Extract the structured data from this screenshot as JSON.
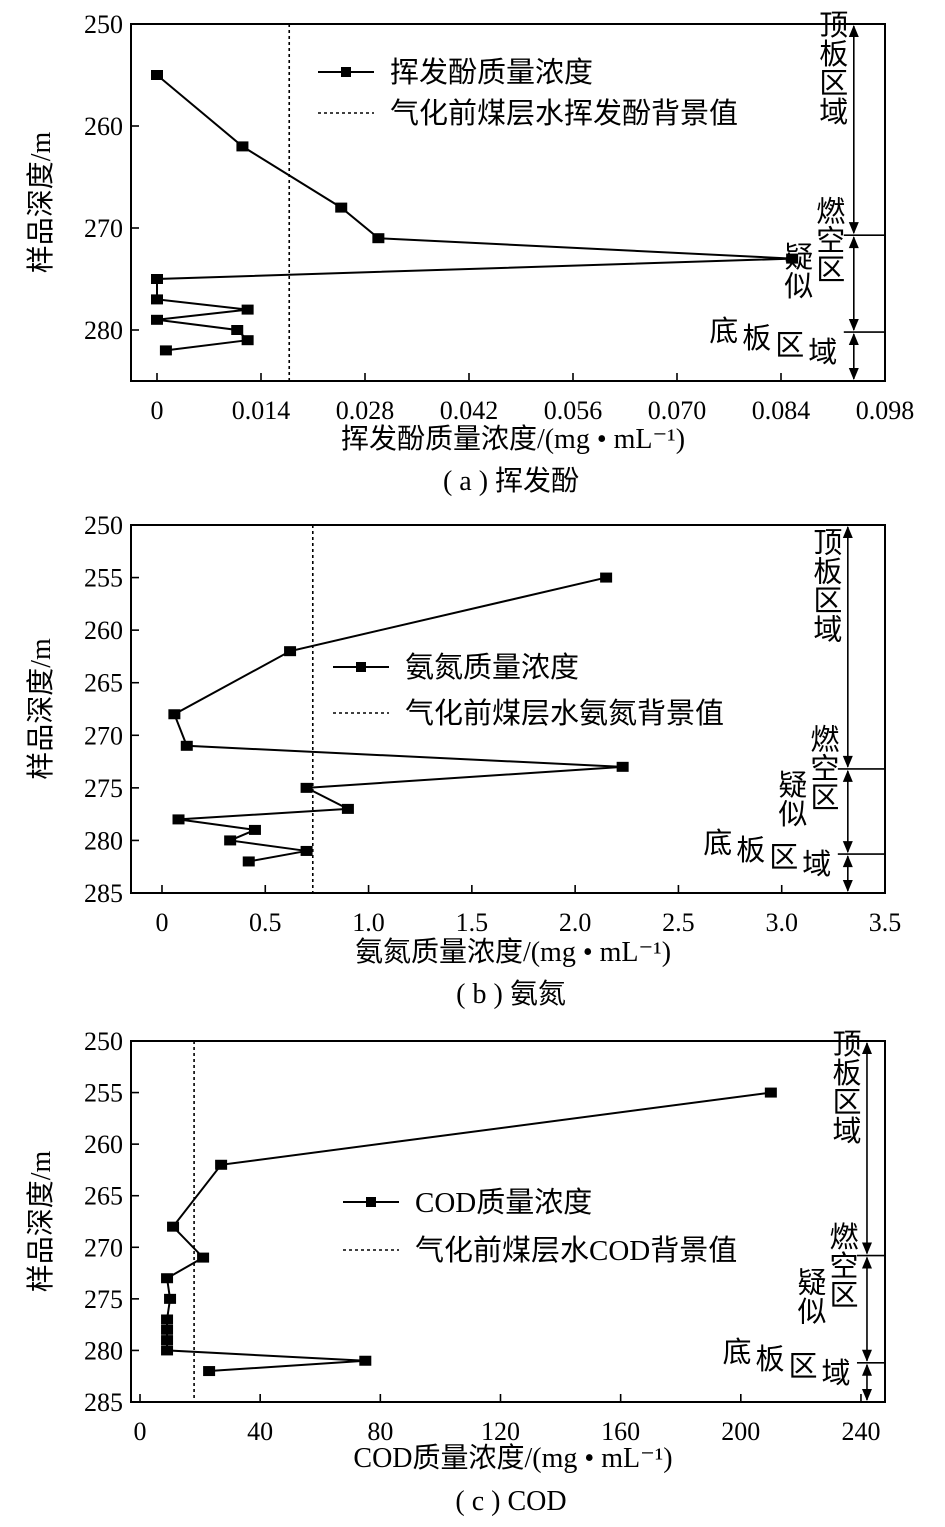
{
  "chart_data": [
    {
      "id": "a",
      "type": "line",
      "caption": "( a ) 挥发酚",
      "xlabel": "挥发酚质量浓度/(mg • mL⁻¹)",
      "ylabel": "样品深度/m",
      "xlim": [
        -0.0035,
        0.098
      ],
      "ylim": [
        250,
        285
      ],
      "xticks": [
        0,
        0.014,
        0.028,
        0.042,
        0.056,
        0.07,
        0.084,
        0.098
      ],
      "xtick_labels": [
        "0",
        "0.014",
        "0.028",
        "0.042",
        "0.056",
        "0.070",
        "0.084",
        "0.098"
      ],
      "yticks": [
        250,
        260,
        270,
        280
      ],
      "ytick_labels": [
        "250",
        "260",
        "270",
        "280"
      ],
      "series": [
        {
          "name": "挥发酚质量浓度",
          "x": [
            0,
            0.0115,
            0.0248,
            0.0298,
            0.0855,
            0,
            0,
            0.0122,
            0,
            0.0108,
            0.0122,
            0.0012
          ],
          "y": [
            255,
            262,
            268,
            271,
            273,
            275,
            277,
            278,
            279,
            280,
            281,
            282
          ]
        }
      ],
      "background_value": 0.0178,
      "background_label": "气化前煤层水挥发酚背景值",
      "zones": {
        "x": 0.0938,
        "roof_start": 250,
        "roof_end": 270.7,
        "burn_end": 280.2,
        "floor_end": 285,
        "roof_label": "顶板区域",
        "burn_label_1": "疑似",
        "burn_label_2": "燃空区",
        "floor_label_1": "底",
        "floor_label_2": "板",
        "floor_label_3": "区",
        "floor_label_4": "域"
      }
    },
    {
      "id": "b",
      "type": "line",
      "caption": "( b ) 氨氮",
      "xlabel": "氨氮质量浓度/(mg • mL⁻¹)",
      "ylabel": "样品深度/m",
      "xlim": [
        -0.15,
        3.5
      ],
      "ylim": [
        250,
        285
      ],
      "xticks": [
        0,
        0.5,
        1.0,
        1.5,
        2.0,
        2.5,
        3.0,
        3.5
      ],
      "xtick_labels": [
        "0",
        "0.5",
        "1.0",
        "1.5",
        "2.0",
        "2.5",
        "3.0",
        "3.5"
      ],
      "yticks": [
        250,
        255,
        260,
        265,
        270,
        275,
        280,
        285
      ],
      "ytick_labels": [
        "250",
        "255",
        "260",
        "265",
        "270",
        "275",
        "280",
        "285"
      ],
      "series": [
        {
          "name": "氨氮质量浓度",
          "x": [
            2.15,
            0.62,
            0.06,
            0.12,
            2.23,
            0.7,
            0.9,
            0.08,
            0.45,
            0.33,
            0.7,
            0.42
          ],
          "y": [
            255,
            262,
            268,
            271,
            273,
            275,
            277,
            278,
            279,
            280,
            281,
            282
          ]
        }
      ],
      "background_value": 0.73,
      "background_label": "气化前煤层水氨氮背景值",
      "zones": {
        "x": 3.32,
        "roof_start": 250,
        "roof_end": 273.2,
        "burn_end": 281.3,
        "floor_end": 285,
        "roof_label": "顶板区域",
        "burn_label_1": "疑似",
        "burn_label_2": "燃空区",
        "floor_label_1": "底",
        "floor_label_2": "板",
        "floor_label_3": "区",
        "floor_label_4": "域"
      }
    },
    {
      "id": "c",
      "type": "line",
      "caption": "( c ) COD",
      "xlabel": "COD质量浓度/(mg • mL⁻¹)",
      "ylabel": "样品深度/m",
      "xlim": [
        -3,
        248
      ],
      "ylim": [
        250,
        285
      ],
      "xticks": [
        0,
        40,
        80,
        120,
        160,
        200,
        240
      ],
      "xtick_labels": [
        "0",
        "40",
        "80",
        "120",
        "160",
        "200",
        "240"
      ],
      "yticks": [
        250,
        255,
        260,
        265,
        270,
        275,
        280,
        285
      ],
      "ytick_labels": [
        "250",
        "255",
        "260",
        "265",
        "270",
        "275",
        "280",
        "285"
      ],
      "series": [
        {
          "name": "COD质量浓度",
          "x": [
            210,
            27,
            11,
            21,
            9,
            10,
            9,
            9,
            9,
            9,
            75,
            23
          ],
          "y": [
            255,
            262,
            268,
            271,
            273,
            275,
            277,
            278,
            279,
            280,
            281,
            282
          ]
        }
      ],
      "background_value": 18,
      "background_label": "气化前煤层水COD背景值",
      "zones": {
        "x": 242,
        "roof_start": 250,
        "roof_end": 270.8,
        "burn_end": 281.2,
        "floor_end": 285,
        "roof_label": "顶板区域",
        "burn_label_1": "疑似",
        "burn_label_2": "燃空区",
        "floor_label_1": "底",
        "floor_label_2": "板",
        "floor_label_3": "区",
        "floor_label_4": "域"
      }
    }
  ]
}
